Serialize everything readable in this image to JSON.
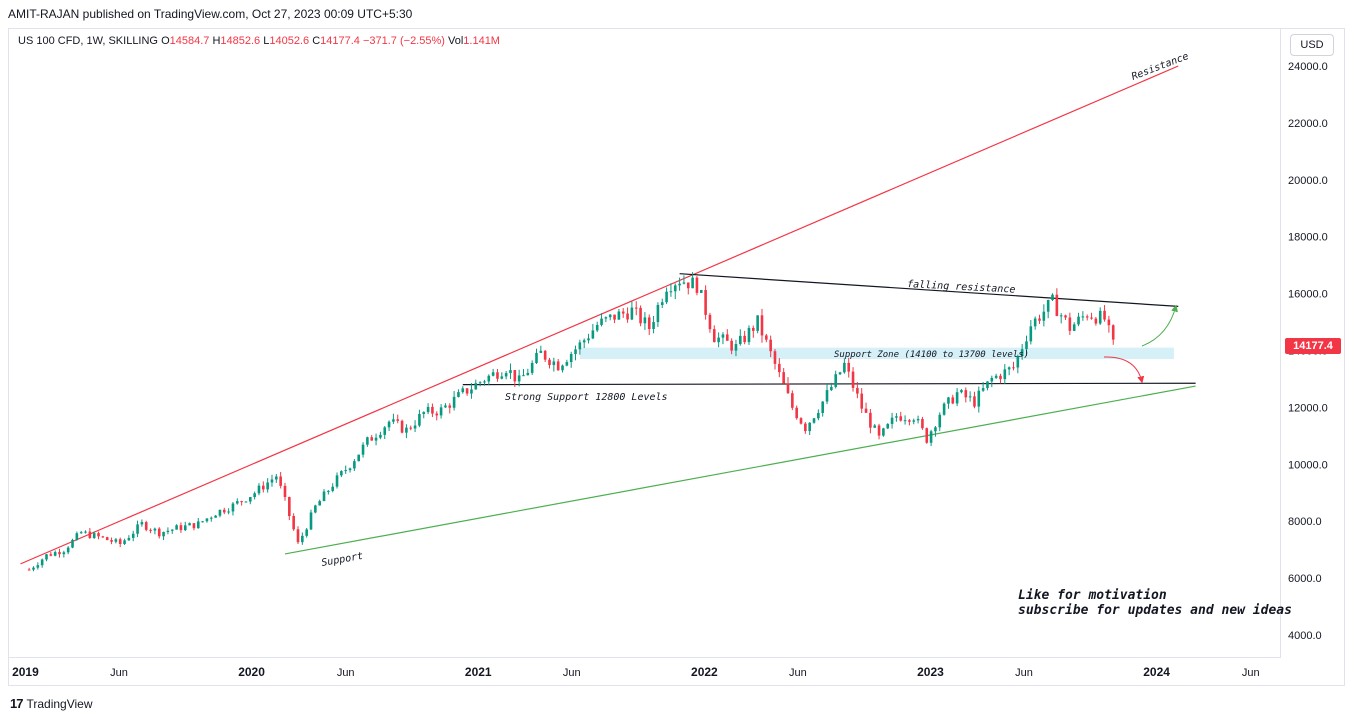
{
  "header": {
    "published_by": "AMIT-RAJAN published on TradingView.com, Oct 27, 2023 00:09 UTC+5:30"
  },
  "legend": {
    "symbol": "US 100 CFD, 1W, SKILLING",
    "open_label": "O",
    "open": "14584.7",
    "high_label": "H",
    "high": "14852.6",
    "low_label": "L",
    "low": "14052.6",
    "close_label": "C",
    "close": "14177.4",
    "change": "−371.7 (−2.55%)",
    "vol_label": "Vol",
    "vol": "1.141M"
  },
  "currency": "USD",
  "last_price": "14177.4",
  "footer": {
    "brand": "TradingView"
  },
  "annotations": {
    "resistance": "Resistance",
    "falling_resistance": "falling resistance",
    "support_zone": "Support Zone (14100 to 13700 levels)",
    "strong_support": "Strong Support 12800 Levels",
    "support": "Support",
    "cta_line1": "Like for motivation",
    "cta_line2": "subscribe for updates and new ideas"
  },
  "colors": {
    "up": "#089981",
    "down": "#f23645",
    "resistance_line": "#f23645",
    "support_line": "#4caf50",
    "horizontal_line": "#131722",
    "zone_fill": "#d6f0f8"
  },
  "chart_data": {
    "type": "candlestick",
    "yticks": [
      "24000.0",
      "22000.0",
      "20000.0",
      "18000.0",
      "16000.0",
      "14000.0",
      "12000.0",
      "10000.0",
      "8000.0",
      "6000.0",
      "4000.0"
    ],
    "ylim": [
      3500,
      25000
    ],
    "xticks": [
      "2019",
      "Jun",
      "2020",
      "Jun",
      "2021",
      "Jun",
      "2022",
      "Jun",
      "2023",
      "Jun",
      "2024",
      "Jun"
    ],
    "x_bold": [
      "2019",
      "2020",
      "2021",
      "2022",
      "2023",
      "2024"
    ],
    "xlim": [
      "2018-12-20",
      "2024-07-15"
    ],
    "trendlines": [
      {
        "name": "resistance",
        "from": [
          "2018-12-24",
          6500
        ],
        "to": [
          "2024-02-05",
          24000
        ]
      },
      {
        "name": "falling-resistance",
        "from": [
          "2021-11-22",
          16700
        ],
        "to": [
          "2024-02-05",
          15550
        ]
      },
      {
        "name": "strong-support",
        "from": [
          "2020-12-07",
          12800
        ],
        "to": [
          "2024-03-04",
          12850
        ]
      },
      {
        "name": "support",
        "from": [
          "2020-02-24",
          6850
        ],
        "to": [
          "2024-03-04",
          12750
        ]
      }
    ],
    "zone": {
      "from": "2021-06-14",
      "to": "2024-01-29",
      "top": 14100,
      "bottom": 13700
    },
    "closes": [
      [
        "2019-01-07",
        6300
      ],
      [
        "2019-02-04",
        6800
      ],
      [
        "2019-03-04",
        7000
      ],
      [
        "2019-04-01",
        7600
      ],
      [
        "2019-05-06",
        7400
      ],
      [
        "2019-06-03",
        7200
      ],
      [
        "2019-07-08",
        7900
      ],
      [
        "2019-08-05",
        7600
      ],
      [
        "2019-09-02",
        7750
      ],
      [
        "2019-10-07",
        7900
      ],
      [
        "2019-11-04",
        8300
      ],
      [
        "2019-12-02",
        8550
      ],
      [
        "2020-01-06",
        9000
      ],
      [
        "2020-02-10",
        9600
      ],
      [
        "2020-02-24",
        8700
      ],
      [
        "2020-03-16",
        7200
      ],
      [
        "2020-03-23",
        7500
      ],
      [
        "2020-04-13",
        8500
      ],
      [
        "2020-05-11",
        9300
      ],
      [
        "2020-06-08",
        10000
      ],
      [
        "2020-07-06",
        10800
      ],
      [
        "2020-08-10",
        11500
      ],
      [
        "2020-09-07",
        11200
      ],
      [
        "2020-10-05",
        11800
      ],
      [
        "2020-11-02",
        11900
      ],
      [
        "2020-12-07",
        12500
      ],
      [
        "2021-01-11",
        13000
      ],
      [
        "2021-02-15",
        13400
      ],
      [
        "2021-03-08",
        12900
      ],
      [
        "2021-04-12",
        13900
      ],
      [
        "2021-05-10",
        13500
      ],
      [
        "2021-06-14",
        14200
      ],
      [
        "2021-07-12",
        14900
      ],
      [
        "2021-08-09",
        15200
      ],
      [
        "2021-09-06",
        15400
      ],
      [
        "2021-10-04",
        14800
      ],
      [
        "2021-11-01",
        16300
      ],
      [
        "2021-11-22",
        16500
      ],
      [
        "2021-12-20",
        16300
      ],
      [
        "2022-01-17",
        14500
      ],
      [
        "2022-02-21",
        14100
      ],
      [
        "2022-03-28",
        15000
      ],
      [
        "2022-04-25",
        13500
      ],
      [
        "2022-05-23",
        12000
      ],
      [
        "2022-06-13",
        11300
      ],
      [
        "2022-07-11",
        12200
      ],
      [
        "2022-08-15",
        13500
      ],
      [
        "2022-09-12",
        12000
      ],
      [
        "2022-10-10",
        10900
      ],
      [
        "2022-11-07",
        11700
      ],
      [
        "2022-12-05",
        11700
      ],
      [
        "2022-12-26",
        10900
      ],
      [
        "2023-01-16",
        11800
      ],
      [
        "2023-02-13",
        12500
      ],
      [
        "2023-03-13",
        12200
      ],
      [
        "2023-04-10",
        13000
      ],
      [
        "2023-05-15",
        13400
      ],
      [
        "2023-06-12",
        14900
      ],
      [
        "2023-07-17",
        15700
      ],
      [
        "2023-08-14",
        14800
      ],
      [
        "2023-09-11",
        15300
      ],
      [
        "2023-10-09",
        15100
      ],
      [
        "2023-10-23",
        14177
      ]
    ]
  }
}
